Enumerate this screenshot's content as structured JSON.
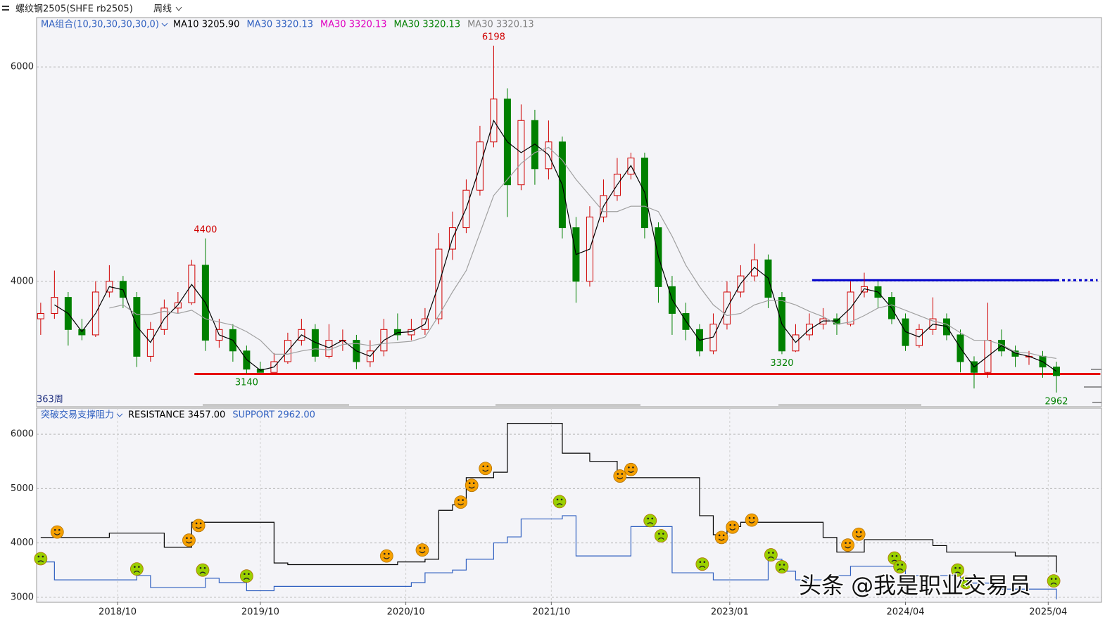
{
  "header": {
    "symbol": "螺纹钢2505(SHFE rb2505)",
    "period": "周线"
  },
  "watermark": "头条 @我是职业交易员",
  "chart_data": [
    {
      "type": "candlestick",
      "legend_title": "MA组合(10,30,30,30,30,0)",
      "legend": [
        {
          "label": "MA10 3205.90",
          "color": "#000000"
        },
        {
          "label": "MA30 3320.13",
          "color": "#3060c0"
        },
        {
          "label": "MA30 3320.13",
          "color": "#e000c0"
        },
        {
          "label": "MA30 3320.13",
          "color": "#008000"
        },
        {
          "label": "MA30 3320.13",
          "color": "#808080"
        }
      ],
      "count_label": "363周",
      "x": [
        0,
        5,
        10,
        15,
        20,
        25,
        30,
        35,
        40,
        45,
        50,
        55,
        60,
        65,
        70,
        75,
        80,
        85,
        90,
        95,
        100,
        105,
        110,
        115,
        120,
        125,
        130,
        135,
        140,
        145,
        150,
        155,
        160,
        165,
        170,
        175,
        180,
        185,
        190,
        195,
        200,
        205,
        210,
        215,
        220,
        225,
        230,
        235,
        240,
        245,
        250,
        255,
        260,
        265,
        270,
        275,
        280,
        285,
        290,
        295,
        300,
        305,
        310,
        315,
        320,
        325,
        330,
        335,
        340,
        345,
        350,
        355,
        360,
        365,
        370
      ],
      "open": [
        3650,
        3700,
        3850,
        3550,
        3500,
        3900,
        4000,
        3850,
        3300,
        3550,
        3750,
        3800,
        4150,
        3450,
        3550,
        3350,
        3180,
        3150,
        3250,
        3450,
        3550,
        3300,
        3450,
        3450,
        3250,
        3350,
        3550,
        3500,
        3550,
        3650,
        4300,
        4500,
        4850,
        5300,
        5700,
        4900,
        5500,
        5050,
        5300,
        4500,
        4000,
        4600,
        4800,
        5000,
        5150,
        4500,
        3950,
        3700,
        3550,
        3350,
        3600,
        3900,
        4050,
        4200,
        3850,
        3350,
        3500,
        3600,
        3650,
        3600,
        3900,
        3950,
        3850,
        3650,
        3400,
        3550,
        3650,
        3500,
        3250,
        3150,
        3450,
        3350,
        3300,
        3300,
        3200
      ],
      "high": [
        3800,
        4100,
        3900,
        3650,
        4000,
        4150,
        4050,
        3900,
        3620,
        3830,
        3900,
        4200,
        4400,
        3650,
        3600,
        3400,
        3250,
        3330,
        3520,
        3650,
        3600,
        3600,
        3550,
        3500,
        3450,
        3650,
        3700,
        3650,
        3750,
        4450,
        4650,
        4950,
        5450,
        6198,
        5800,
        5650,
        5600,
        5500,
        5350,
        4600,
        4700,
        4950,
        5150,
        5200,
        5200,
        4550,
        4050,
        3800,
        3600,
        3700,
        4000,
        4150,
        4350,
        4250,
        3900,
        3600,
        3700,
        3750,
        3700,
        4000,
        4080,
        4000,
        3900,
        3700,
        3600,
        3850,
        3700,
        3550,
        3300,
        3800,
        3550,
        3400,
        3350,
        3350,
        3250
      ],
      "low": [
        3500,
        3650,
        3400,
        3450,
        3480,
        3850,
        3750,
        3200,
        3250,
        3500,
        3700,
        3780,
        3350,
        3380,
        3250,
        3140,
        3150,
        3150,
        3230,
        3400,
        3250,
        3280,
        3350,
        3180,
        3200,
        3300,
        3450,
        3450,
        3500,
        3600,
        4200,
        4450,
        4800,
        5250,
        4600,
        4850,
        4900,
        4950,
        4400,
        3800,
        3950,
        4550,
        4750,
        4950,
        4400,
        3800,
        3500,
        3450,
        3300,
        3320,
        3550,
        3850,
        4000,
        3750,
        3320,
        3340,
        3450,
        3550,
        3500,
        3580,
        3850,
        3750,
        3600,
        3350,
        3380,
        3500,
        3450,
        3150,
        3000,
        3100,
        3300,
        3200,
        3220,
        3100,
        2962
      ],
      "close": [
        3700,
        3850,
        3550,
        3500,
        3900,
        4000,
        3850,
        3300,
        3550,
        3750,
        3800,
        4150,
        3450,
        3550,
        3350,
        3180,
        3150,
        3250,
        3450,
        3550,
        3300,
        3450,
        3450,
        3250,
        3350,
        3550,
        3500,
        3550,
        3650,
        4300,
        4500,
        4850,
        5300,
        5700,
        4900,
        5500,
        5050,
        5300,
        4500,
        4000,
        4600,
        4800,
        5000,
        5150,
        4500,
        3950,
        3700,
        3550,
        3350,
        3600,
        3900,
        4050,
        4200,
        3850,
        3350,
        3500,
        3600,
        3650,
        3600,
        3900,
        3950,
        3850,
        3650,
        3400,
        3550,
        3650,
        3500,
        3250,
        3150,
        3450,
        3350,
        3300,
        3300,
        3200,
        3120
      ],
      "up_color": "#d00000",
      "down_color": "#008000",
      "labeled_highs": [
        12,
        33
      ],
      "labeled_lows": [
        15,
        54,
        74
      ],
      "lines": [
        {
          "color": "#000000",
          "values": [
            null,
            3780,
            3700,
            3530,
            3700,
            3950,
            3920,
            3580,
            3430,
            3650,
            3780,
            3970,
            3800,
            3500,
            3450,
            3270,
            3170,
            3200,
            3350,
            3500,
            3430,
            3380,
            3450,
            3350,
            3300,
            3450,
            3520,
            3530,
            3600,
            3970,
            4400,
            4680,
            5070,
            5500,
            5300,
            5200,
            5280,
            5180,
            4900,
            4250,
            4300,
            4700,
            4900,
            5080,
            4830,
            4230,
            3830,
            3630,
            3450,
            3480,
            3750,
            3980,
            4130,
            4030,
            3600,
            3430,
            3550,
            3630,
            3630,
            3750,
            3930,
            3900,
            3750,
            3530,
            3480,
            3600,
            3580,
            3380,
            3200,
            3300,
            3400,
            3330,
            3300,
            3250,
            3160
          ]
        },
        {
          "color": "#a0a0a0",
          "values": [
            null,
            null,
            null,
            null,
            null,
            3750,
            3780,
            3690,
            3690,
            3720,
            3700,
            3730,
            3650,
            3620,
            3590,
            3530,
            3450,
            3320,
            3320,
            3350,
            3370,
            3360,
            3410,
            3420,
            3400,
            3420,
            3430,
            3440,
            3480,
            3680,
            3900,
            4100,
            4450,
            4800,
            4950,
            5100,
            5200,
            5250,
            5130,
            4950,
            4800,
            4650,
            4650,
            4700,
            4700,
            4650,
            4420,
            4150,
            3950,
            3780,
            3680,
            3700,
            3780,
            3820,
            3820,
            3780,
            3720,
            3670,
            3600,
            3620,
            3680,
            3750,
            3780,
            3730,
            3680,
            3630,
            3600,
            3520,
            3450,
            3450,
            3410,
            3340,
            3330,
            3300,
            3280
          ]
        }
      ],
      "hlines": [
        {
          "value": 3135,
          "color": "#e60000",
          "from": 56,
          "to": 386
        },
        {
          "value": 4010,
          "color": "#0000cc",
          "from": 281,
          "to": 370,
          "dotted_to": 385
        }
      ],
      "xlim": [
        -1.5,
        380
      ],
      "ylim": [
        2830,
        6460
      ],
      "yticks": [
        4000,
        6000
      ],
      "grid": true
    },
    {
      "type": "step",
      "legend_title": "突破交易支撑阻力",
      "legend": [
        {
          "label": "RESISTANCE 3457.00",
          "color": "#000000"
        },
        {
          "label": "SUPPORT 2962.00",
          "color": "#3060c0"
        }
      ],
      "x": [
        0,
        5,
        10,
        15,
        20,
        25,
        30,
        35,
        40,
        45,
        50,
        55,
        60,
        65,
        70,
        75,
        80,
        85,
        90,
        95,
        100,
        105,
        110,
        115,
        120,
        125,
        130,
        135,
        140,
        145,
        150,
        155,
        160,
        165,
        170,
        175,
        180,
        185,
        190,
        195,
        200,
        205,
        210,
        215,
        220,
        225,
        230,
        235,
        240,
        245,
        250,
        255,
        260,
        265,
        270,
        275,
        280,
        285,
        290,
        295,
        300,
        305,
        310,
        315,
        320,
        325,
        330,
        335,
        340,
        345,
        350,
        355,
        360,
        365,
        370
      ],
      "series": [
        {
          "color": "#000000",
          "values": [
            4100,
            4100,
            4100,
            4100,
            4100,
            4180,
            4180,
            4180,
            4180,
            3920,
            3920,
            4380,
            4380,
            4380,
            4380,
            4380,
            4380,
            3630,
            3600,
            3600,
            3600,
            3600,
            3600,
            3600,
            3600,
            3600,
            3650,
            3650,
            3700,
            4600,
            4700,
            5200,
            5200,
            5300,
            6200,
            6200,
            6200,
            6200,
            5650,
            5650,
            5500,
            5500,
            5200,
            5200,
            5200,
            5200,
            5200,
            5200,
            4500,
            4150,
            4300,
            4380,
            4380,
            4380,
            4380,
            4380,
            4380,
            4100,
            3830,
            3830,
            4060,
            4060,
            4060,
            4060,
            4060,
            3950,
            3830,
            3830,
            3830,
            3830,
            3830,
            3760,
            3760,
            3760,
            3457
          ]
        },
        {
          "color": "#3060c0",
          "values": [
            3650,
            3320,
            3320,
            3320,
            3320,
            3320,
            3320,
            3400,
            3180,
            3180,
            3180,
            3180,
            3350,
            3270,
            3270,
            3120,
            3120,
            3200,
            3200,
            3200,
            3200,
            3200,
            3200,
            3200,
            3200,
            3200,
            3200,
            3270,
            3450,
            3450,
            3500,
            3700,
            3700,
            4000,
            4110,
            4440,
            4440,
            4440,
            4500,
            3760,
            3760,
            3760,
            3760,
            4300,
            4300,
            4300,
            3450,
            3450,
            3450,
            3320,
            3320,
            3320,
            3320,
            3700,
            3480,
            3320,
            3320,
            3320,
            3400,
            3570,
            3570,
            3570,
            3570,
            3400,
            3400,
            3400,
            3400,
            3260,
            3260,
            3260,
            3150,
            3150,
            3150,
            3150,
            2962
          ]
        }
      ],
      "up_signals": {
        "color": "#f5a000",
        "x": [
          6,
          54,
          57.5,
          126,
          139,
          153,
          157,
          162,
          211,
          215,
          248,
          252,
          259,
          294,
          298
        ],
        "y": [
          4200,
          4050,
          4320,
          3760,
          3870,
          4750,
          5060,
          5370,
          5230,
          5350,
          4100,
          4290,
          4420,
          3960,
          4160
        ]
      },
      "down_signals": {
        "color": "#9ad000",
        "x": [
          0,
          35,
          59,
          75,
          189,
          222,
          226,
          241,
          266,
          270,
          311,
          313,
          334,
          337,
          369
        ],
        "y": [
          3710,
          3520,
          3500,
          3390,
          4760,
          4410,
          4130,
          3610,
          3780,
          3560,
          3720,
          3560,
          3500,
          3270,
          3300
        ]
      },
      "xlim": [
        -1.5,
        380
      ],
      "ylim": [
        2920,
        6480
      ],
      "yticks": [
        3000,
        4000,
        5000,
        6000
      ],
      "xticks": [
        {
          "value": 28,
          "label": "2018/10"
        },
        {
          "value": 80,
          "label": "2019/10"
        },
        {
          "value": 133,
          "label": "2020/10"
        },
        {
          "value": 186,
          "label": "2021/10"
        },
        {
          "value": 251,
          "label": "2023/01"
        },
        {
          "value": 315,
          "label": "2024/04"
        },
        {
          "value": 367,
          "label": "2025/04"
        }
      ],
      "grid": true
    }
  ]
}
